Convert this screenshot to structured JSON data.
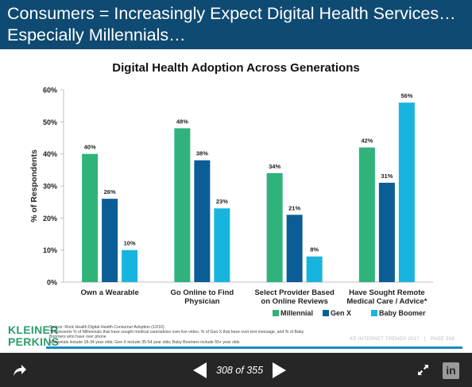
{
  "slide": {
    "title": "Consumers = Increasingly Expect Digital Health Services…\nEspecially Millennials…",
    "logo": "KLEINER\nPERKINS",
    "source": "Source: Rock Health Digital Health Consumer Adoption (12/16)\n*Represents % of Millennials that have sought medical care/advice over live video, % of Gen X that have over text message, and % of Baby\nBoomers who have over phone\nMillennials include 18-34 year olds; Gen X include 35-54 year olds; Baby Boomers include 55+ year olds",
    "footer_report": "KP INTERNET TRENDS 2017",
    "footer_sep": "|",
    "footer_page": "PAGE 308"
  },
  "colors": {
    "title_bar": "#0f4a72",
    "millennial": "#2fb37a",
    "genx": "#0b5d96",
    "boomer": "#17b5de",
    "accent_line": "#1b8ac6"
  },
  "chart_data": {
    "type": "bar",
    "title": "Digital Health Adoption Across Generations",
    "ylabel": "% of Respondents",
    "xlabel": "",
    "categories": [
      "Own a Wearable",
      "Go Online to Find Physician",
      "Select Provider Based on Online Reviews",
      "Have Sought Remote Medical Care / Advice*"
    ],
    "category_lines": [
      [
        "Own a Wearable"
      ],
      [
        "Go Online to Find",
        "Physician"
      ],
      [
        "Select Provider Based",
        "on Online Reviews"
      ],
      [
        "Have Sought Remote",
        "Medical Care / Advice*"
      ]
    ],
    "series": [
      {
        "name": "Millennial",
        "values": [
          40,
          48,
          34,
          42
        ],
        "labels": [
          "40%",
          "48%",
          "34%",
          "42%"
        ]
      },
      {
        "name": "Gen X",
        "values": [
          26,
          38,
          21,
          31
        ],
        "labels": [
          "26%",
          "38%",
          "21%",
          "31%"
        ]
      },
      {
        "name": "Baby Boomer",
        "values": [
          10,
          23,
          8,
          56
        ],
        "labels": [
          "10%",
          "23%",
          "8%",
          "56%"
        ]
      }
    ],
    "ylim": [
      0,
      60
    ],
    "yticks": [
      "0%",
      "10%",
      "20%",
      "30%",
      "40%",
      "50%",
      "60%"
    ],
    "grid": false,
    "legend_position": "bottom-right"
  },
  "toolbar": {
    "page_counter": "308 of 355",
    "linkedin_label": "in",
    "share_icon": "share-arrow-icon",
    "expand_icon": "expand-icon"
  }
}
